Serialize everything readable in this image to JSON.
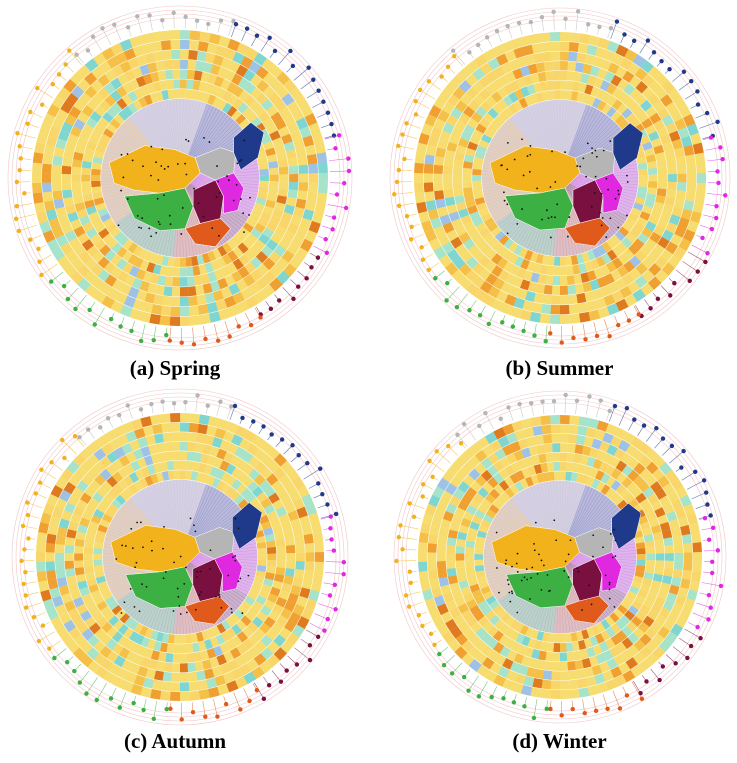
{
  "figure": {
    "panels": [
      {
        "key": "spring",
        "caption": "(a) Spring"
      },
      {
        "key": "summer",
        "caption": "(b) Summer"
      },
      {
        "key": "autumn",
        "caption": "(c) Autumn"
      },
      {
        "key": "winter",
        "caption": "(d) Winter"
      }
    ]
  },
  "region_colors": {
    "northeast": "#1f3a8a",
    "north": "#b5b5b5",
    "northwest": "#f2b21b",
    "southwest": "#3cb043",
    "central": "#7a1040",
    "south": "#e05a1b",
    "east": "#e028e0"
  },
  "heatmap_colors": [
    "#f7dc6f",
    "#f9d66a",
    "#f5c048",
    "#f0a030",
    "#e07a1f",
    "#a7e3c9",
    "#7fd6d0",
    "#9ec2e6",
    "#6fa3d8",
    "#c0392b"
  ]
}
